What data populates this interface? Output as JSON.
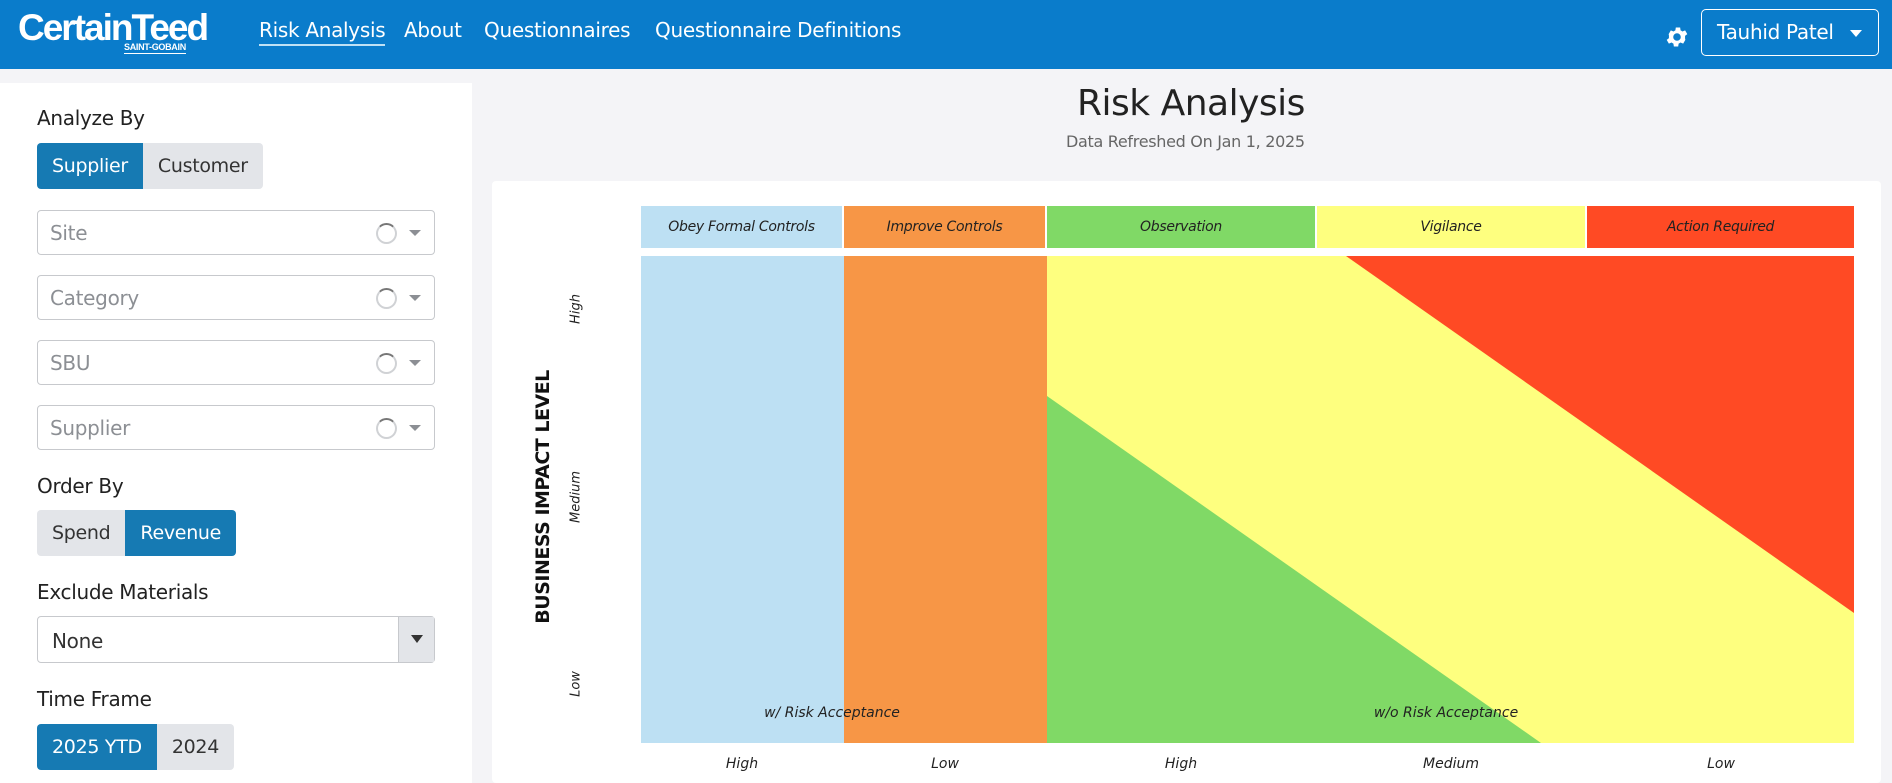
{
  "brand": {
    "name": "CertainTeed",
    "subtitle": "SAINT-GOBAIN"
  },
  "nav": {
    "links": [
      "Risk Analysis",
      "About",
      "Questionnaires",
      "Questionnaire Definitions"
    ],
    "active": "Risk Analysis",
    "settings_icon": "gear-icon",
    "user_name": "Tauhid Patel"
  },
  "sidebar": {
    "analyze_by": {
      "label": "Analyze By",
      "options": [
        "Supplier",
        "Customer"
      ],
      "selected": "Supplier"
    },
    "filters": [
      {
        "placeholder": "Site"
      },
      {
        "placeholder": "Category"
      },
      {
        "placeholder": "SBU"
      },
      {
        "placeholder": "Supplier"
      }
    ],
    "order_by": {
      "label": "Order By",
      "options": [
        "Spend",
        "Revenue"
      ],
      "selected": "Revenue"
    },
    "exclude_materials": {
      "label": "Exclude Materials",
      "value": "None"
    },
    "time_frame": {
      "label": "Time Frame",
      "options": [
        "2025 YTD",
        "2024"
      ],
      "selected": "2025 YTD"
    }
  },
  "main": {
    "title": "Risk Analysis",
    "refreshed": "Data Refreshed On Jan 1, 2025"
  },
  "chart_data": {
    "type": "heatmap",
    "categories": [
      {
        "name": "Obey Formal Controls",
        "color": "#bde0f3"
      },
      {
        "name": "Improve Controls",
        "color": "#f79646"
      },
      {
        "name": "Observation",
        "color": "#80d966"
      },
      {
        "name": "Vigilance",
        "color": "#feff7f"
      },
      {
        "name": "Action Required",
        "color": "#ff4a24"
      }
    ],
    "ylabel": "BUSINESS IMPACT LEVEL",
    "y_ticks": [
      "High",
      "Medium",
      "Low"
    ],
    "x_ticks": [
      "High",
      "Low",
      "High",
      "Medium",
      "Low"
    ],
    "area_labels": [
      "w/ Risk Acceptance",
      "w/o Risk Acceptance"
    ]
  }
}
